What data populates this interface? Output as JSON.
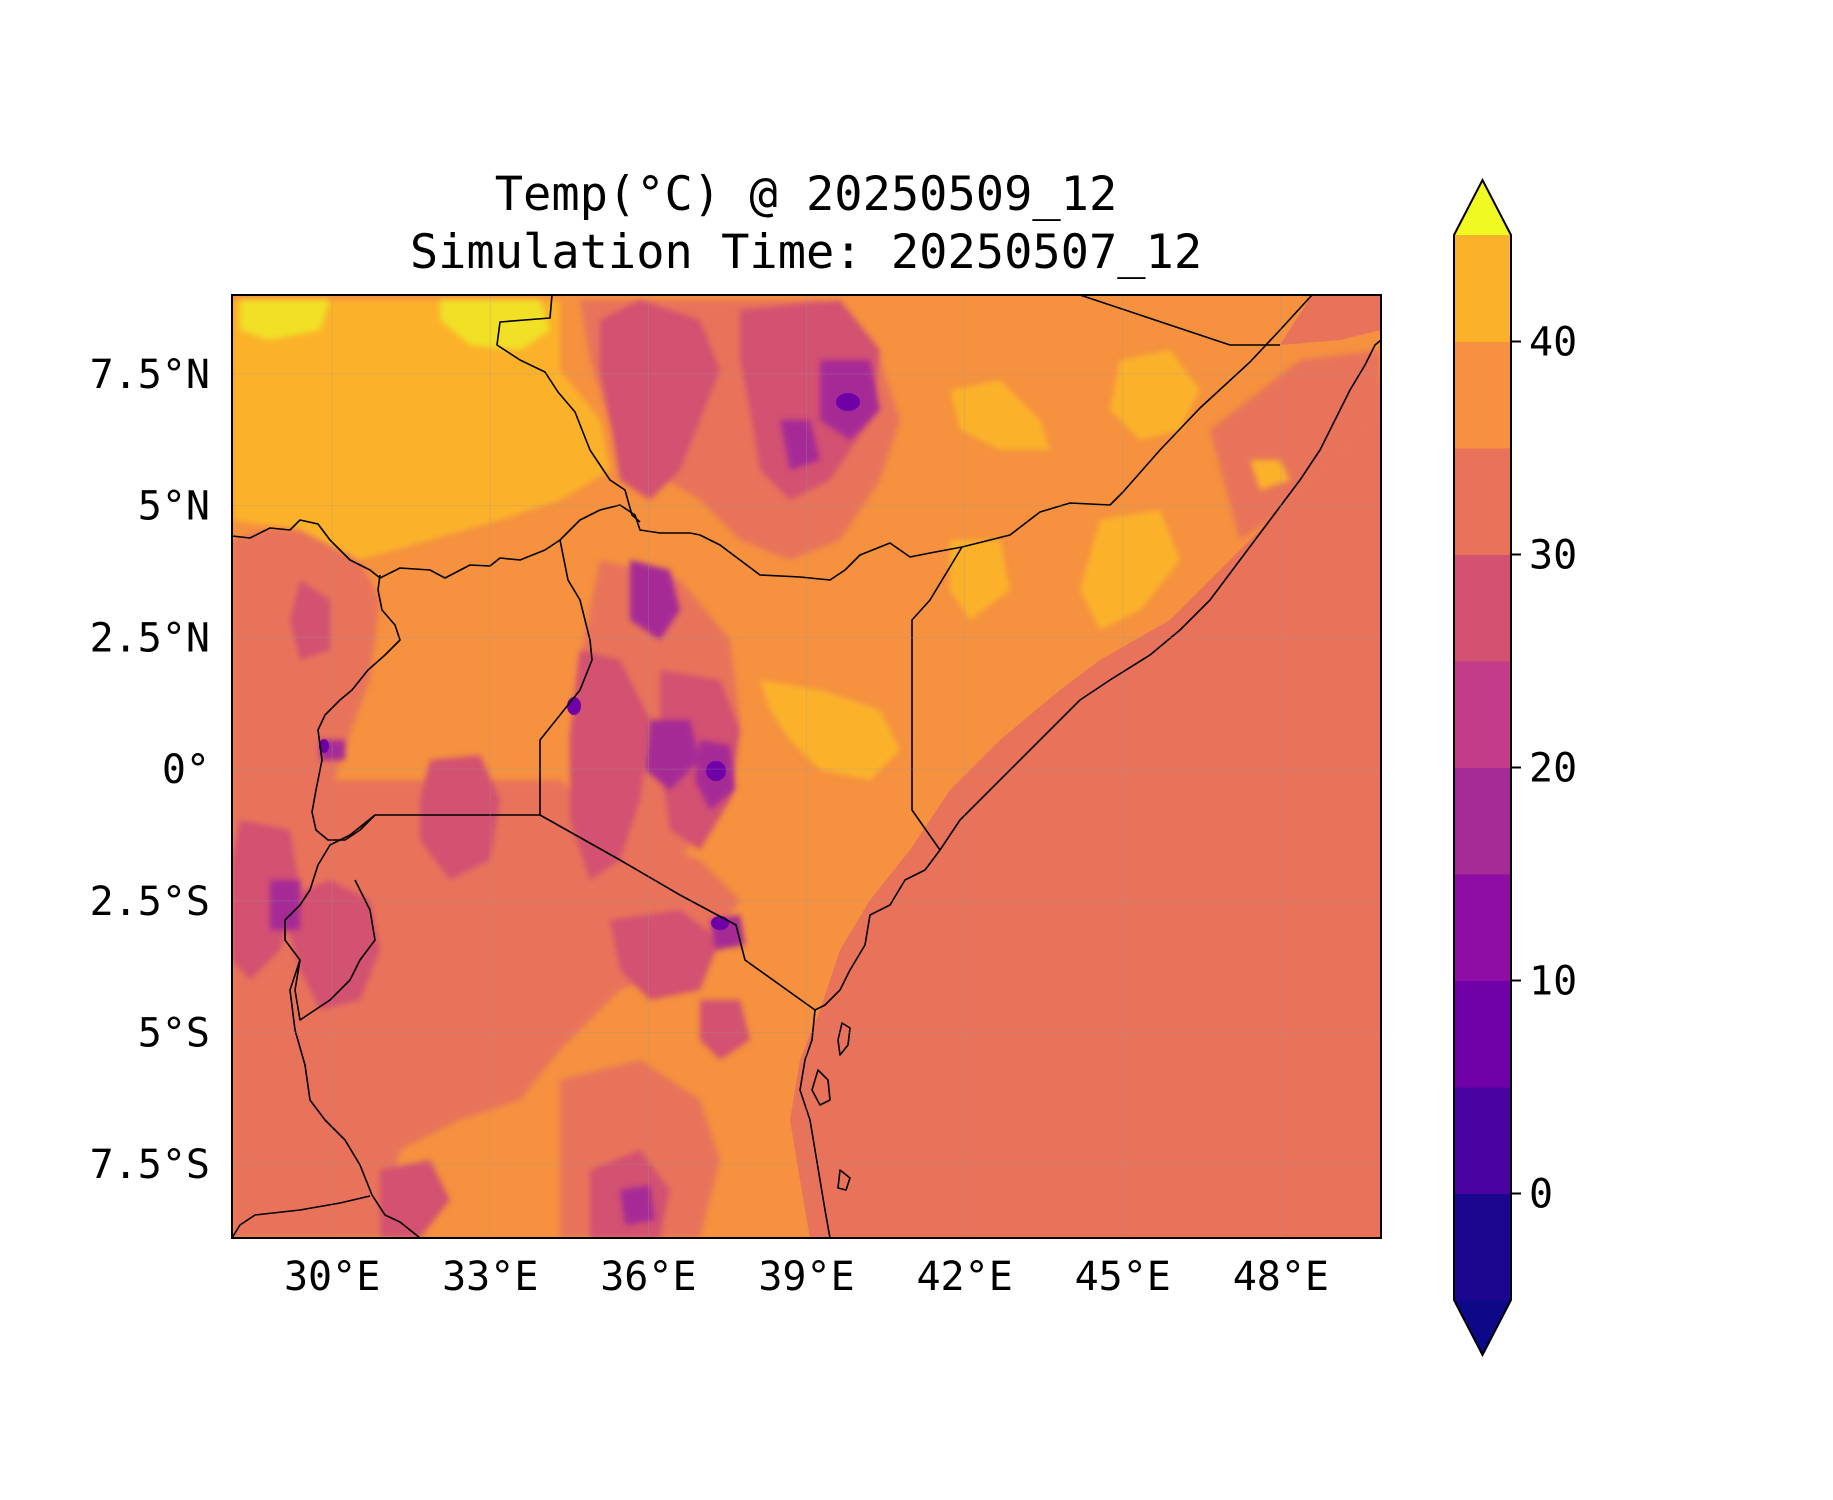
{
  "title": {
    "line1": "Temp(°C) @ 20250509_12",
    "line2": "Simulation Time: 20250507_12"
  },
  "map": {
    "variable": "Temp(°C)",
    "lon_ticks": [
      "30°E",
      "33°E",
      "36°E",
      "39°E",
      "42°E",
      "45°E",
      "48°E"
    ],
    "lat_ticks": [
      "7.5°N",
      "5°N",
      "2.5°N",
      "0°",
      "2.5°S",
      "5°S",
      "7.5°S"
    ],
    "lon_range": [
      28.1,
      49.9
    ],
    "lat_range": [
      -8.9,
      9.0
    ],
    "ocean_value": 28,
    "field_level_colors": [
      "#0d0887",
      "#3e049c",
      "#6a00a8",
      "#8f0da4",
      "#b12a90",
      "#cc4778",
      "#e16462",
      "#f2844b",
      "#fca636",
      "#f0f921"
    ]
  },
  "colorbar": {
    "levels": [
      -5,
      0,
      5,
      10,
      15,
      20,
      25,
      30,
      35,
      40,
      45
    ],
    "colors": [
      "#1c068f",
      "#4903a0",
      "#6f00a8",
      "#8f0da4",
      "#a62b96",
      "#c33c8a",
      "#d35171",
      "#e8735a",
      "#f5913f",
      "#fbb22b",
      "#f1e026"
    ],
    "under_color": "#0d0887",
    "over_color": "#f0f921",
    "tick_labels": [
      "0",
      "10",
      "20",
      "30",
      "40"
    ],
    "tick_values": [
      0,
      10,
      20,
      30,
      40
    ],
    "extend": "both"
  }
}
